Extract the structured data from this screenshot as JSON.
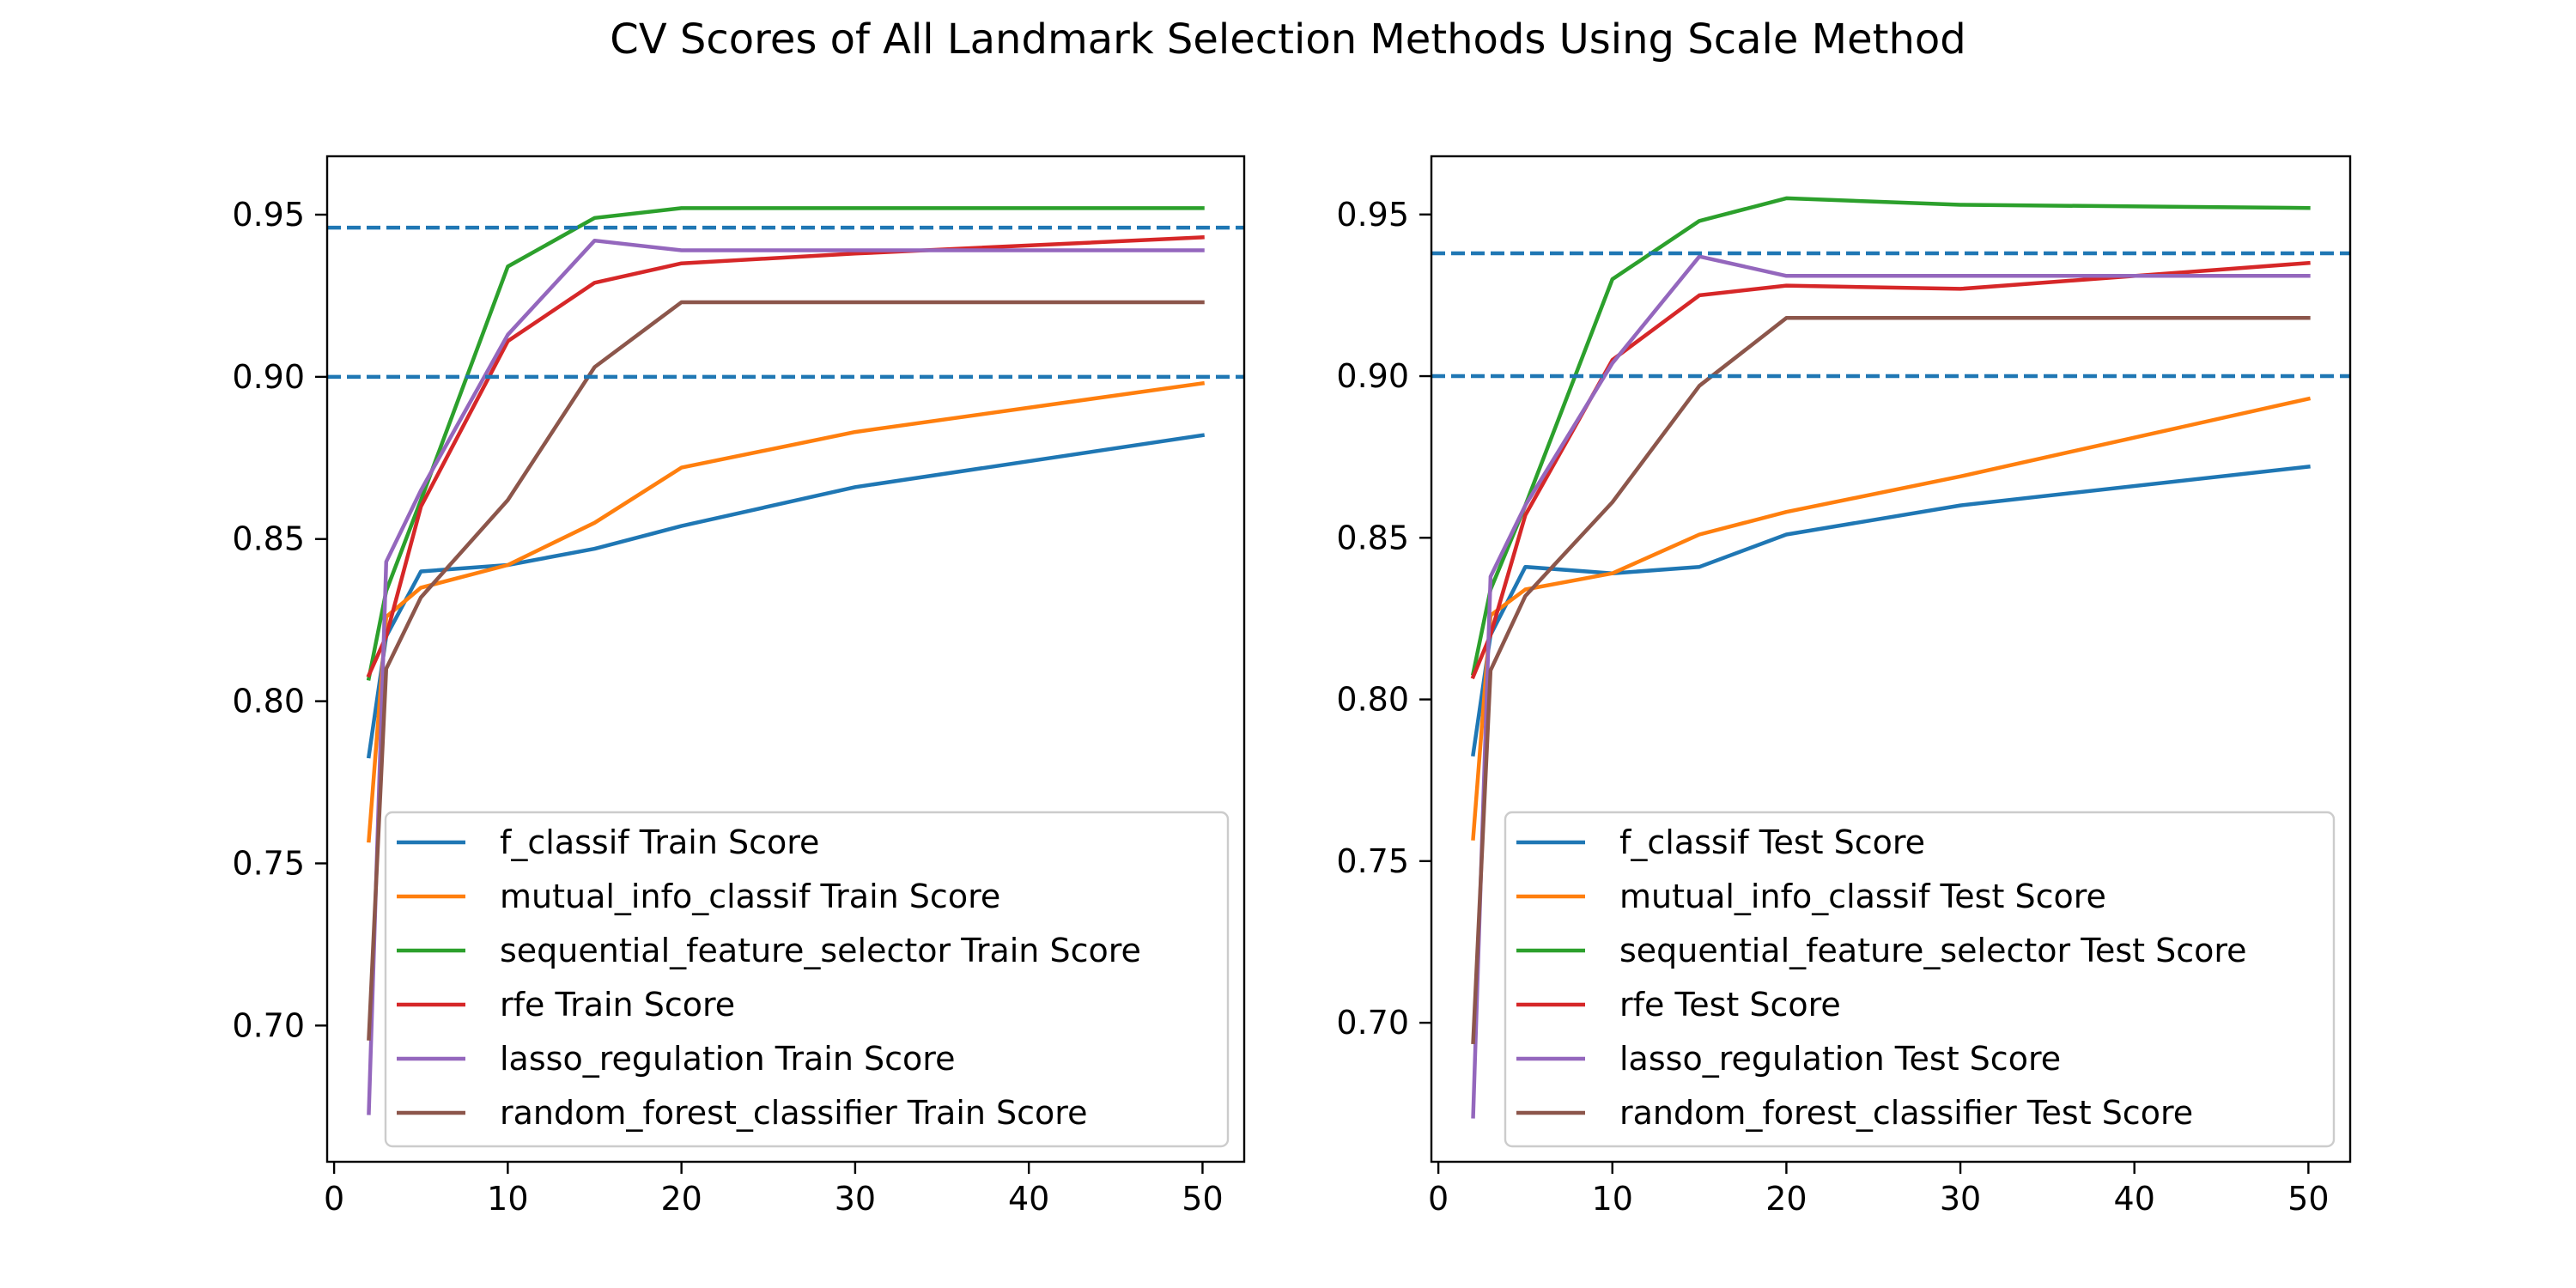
{
  "figure": {
    "title": "CV Scores of All Landmark Selection Methods Using Scale Method"
  },
  "colors": {
    "f_classif": "#1f77b4",
    "mutual_info_classif": "#ff7f0e",
    "sequential_feature_selector": "#2ca02c",
    "rfe": "#d62728",
    "lasso_regulation": "#9467bd",
    "random_forest_classifier": "#8c564b",
    "reference_line": "#1f77b4"
  },
  "chart_data": [
    {
      "type": "line",
      "title": "",
      "xlabel": "",
      "ylabel": "",
      "xlim": [
        -0.4,
        52.4
      ],
      "ylim": [
        0.658,
        0.968
      ],
      "xticks": [
        "0",
        "10",
        "20",
        "30",
        "40",
        "50"
      ],
      "yticks": [
        "0.70",
        "0.75",
        "0.80",
        "0.85",
        "0.90",
        "0.95"
      ],
      "grid": false,
      "legend_position": "lower-right",
      "x": [
        2,
        3,
        5,
        10,
        15,
        20,
        30,
        50
      ],
      "hlines": [
        0.9,
        0.946
      ],
      "series": [
        {
          "name": "f_classif Train Score",
          "color": "#1f77b4",
          "values": [
            0.783,
            0.82,
            0.84,
            0.842,
            0.847,
            0.854,
            0.866,
            0.882
          ]
        },
        {
          "name": "mutual_info_classif Train Score",
          "color": "#ff7f0e",
          "values": [
            0.757,
            0.826,
            0.835,
            0.842,
            0.855,
            0.872,
            0.883,
            0.898
          ]
        },
        {
          "name": "sequential_feature_selector Train Score",
          "color": "#2ca02c",
          "values": [
            0.807,
            0.834,
            0.862,
            0.934,
            0.949,
            0.952,
            0.952,
            0.952
          ]
        },
        {
          "name": "rfe Train Score",
          "color": "#d62728",
          "values": [
            0.808,
            0.82,
            0.86,
            0.911,
            0.929,
            0.935,
            0.938,
            0.943
          ]
        },
        {
          "name": "lasso_regulation Train Score",
          "color": "#9467bd",
          "values": [
            0.673,
            0.843,
            0.865,
            0.913,
            0.942,
            0.939,
            0.939,
            0.939
          ]
        },
        {
          "name": "random_forest_classifier Train Score",
          "color": "#8c564b",
          "values": [
            0.696,
            0.81,
            0.832,
            0.862,
            0.903,
            0.923,
            0.923,
            0.923
          ]
        }
      ]
    },
    {
      "type": "line",
      "title": "",
      "xlabel": "",
      "ylabel": "",
      "xlim": [
        -0.4,
        52.4
      ],
      "ylim": [
        0.657,
        0.968
      ],
      "xticks": [
        "0",
        "10",
        "20",
        "30",
        "40",
        "50"
      ],
      "yticks": [
        "0.70",
        "0.75",
        "0.80",
        "0.85",
        "0.90",
        "0.95"
      ],
      "grid": false,
      "legend_position": "lower-right",
      "x": [
        2,
        3,
        5,
        10,
        15,
        20,
        30,
        50
      ],
      "hlines": [
        0.9,
        0.938
      ],
      "series": [
        {
          "name": "f_classif Test Score",
          "color": "#1f77b4",
          "values": [
            0.783,
            0.82,
            0.841,
            0.839,
            0.841,
            0.851,
            0.86,
            0.872
          ]
        },
        {
          "name": "mutual_info_classif Test Score",
          "color": "#ff7f0e",
          "values": [
            0.757,
            0.826,
            0.834,
            0.839,
            0.851,
            0.858,
            0.869,
            0.893
          ]
        },
        {
          "name": "sequential_feature_selector Test Score",
          "color": "#2ca02c",
          "values": [
            0.808,
            0.834,
            0.86,
            0.93,
            0.948,
            0.955,
            0.953,
            0.952
          ]
        },
        {
          "name": "rfe Test Score",
          "color": "#d62728",
          "values": [
            0.807,
            0.82,
            0.857,
            0.905,
            0.925,
            0.928,
            0.927,
            0.935
          ]
        },
        {
          "name": "lasso_regulation Test Score",
          "color": "#9467bd",
          "values": [
            0.671,
            0.838,
            0.86,
            0.904,
            0.937,
            0.931,
            0.931,
            0.931
          ]
        },
        {
          "name": "random_forest_classifier Test Score",
          "color": "#8c564b",
          "values": [
            0.694,
            0.809,
            0.832,
            0.861,
            0.897,
            0.918,
            0.918,
            0.918
          ]
        }
      ]
    }
  ]
}
